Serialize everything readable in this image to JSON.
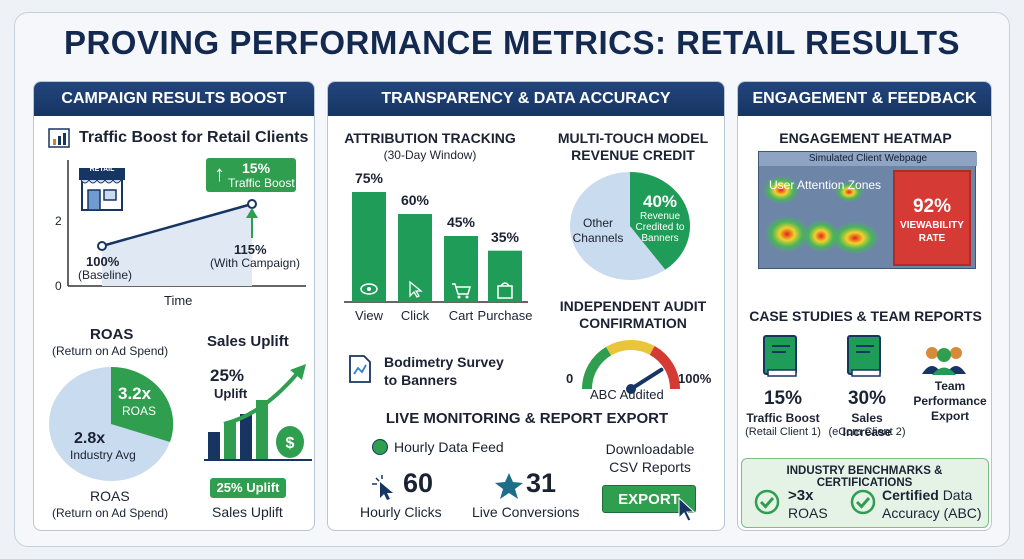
{
  "title": "PROVING PERFORMANCE METRICS: RETAIL RESULTS",
  "left": {
    "header": "CAMPAIGN RESULTS BOOST",
    "traffic_title": "Traffic Boost for Retail Clients",
    "store_sign": "RETAIL",
    "boost_pct": "15%",
    "boost_label": "Traffic Boost",
    "y_tick_top": "2",
    "y_tick_bottom": "0",
    "baseline_value": "100%",
    "baseline_label": "(Baseline)",
    "campaign_value": "115%",
    "campaign_label": "(With Campaign)",
    "x_axis_label": "Time",
    "roas_title": "ROAS",
    "roas_subtitle": "(Return on Ad Spend)",
    "roas_value": "3.2x",
    "roas_value_label": "ROAS",
    "industry_value": "2.8x",
    "industry_label": "Industry Avg",
    "roas_footer": "ROAS",
    "roas_footer_sub": "(Return on Ad Spend)",
    "uplift_title": "Sales Uplift",
    "uplift_pct": "25%",
    "uplift_word": "Uplift",
    "uplift_pill": "25% Uplift",
    "uplift_footer": "Sales Uplift"
  },
  "mid": {
    "header": "TRANSPARENCY & DATA ACCURACY",
    "attr_title": "ATTRIBUTION TRACKING",
    "attr_sub": "(30-Day Window)",
    "bars": [
      {
        "value": "75%",
        "label": "View",
        "pct": 75
      },
      {
        "value": "60%",
        "label": "Click",
        "pct": 60
      },
      {
        "value": "45%",
        "label": "Cart",
        "pct": 45
      },
      {
        "value": "35%",
        "label": "Purchase",
        "pct": 35
      }
    ],
    "mt_title1": "MULTI-TOUCH MODEL",
    "mt_title2": "REVENUE CREDIT",
    "pie_other": "Other",
    "pie_other2": "Channels",
    "pie_pct": "40%",
    "pie_desc1": "Revenue",
    "pie_desc2": "Credited to",
    "pie_desc3": "Banners",
    "pie_share": 40,
    "survey1": "Bodimetry Survey",
    "survey2": "to Banners",
    "audit1": "INDEPENDENT AUDIT",
    "audit2": "CONFIRMATION",
    "gauge_min": "0",
    "gauge_max": "100%",
    "gauge_label": "ABC Audited",
    "live_title": "LIVE MONITORING & REPORT EXPORT",
    "hourly_feed": "Hourly Data Feed",
    "downloadable1": "Downloadable",
    "downloadable2": "CSV Reports",
    "clicks_value": "60",
    "clicks_label": "Hourly Clicks",
    "conv_value": "31",
    "conv_label": "Live Conversions",
    "export": "EXPORT",
    "colors": {
      "green": "#1f9d58",
      "navy": "#163563",
      "pie_light": "#c9dbee"
    }
  },
  "right": {
    "header": "ENGAGEMENT & FEEDBACK",
    "heat_title": "ENGAGEMENT HEATMAP",
    "webpage": "Simulated Client Webpage",
    "zones": "User Attention Zones",
    "view_pct": "92%",
    "view_label1": "VIEWABILITY",
    "view_label2": "RATE",
    "case_title": "CASE STUDIES & TEAM REPORTS",
    "case1_value": "15%",
    "case1_label": "Traffic Boost",
    "case1_sub": "(Retail Client 1)",
    "case2_value": "30%",
    "case2_label": "Sales Increase",
    "case2_sub": "(eCom Client 2)",
    "team1": "Team",
    "team2": "Performance",
    "team3": "Export",
    "bench_title": "INDUSTRY BENCHMARKS & CERTIFICATIONS",
    "bench1_a": ">3x",
    "bench1_b": "ROAS",
    "bench2_a": "Certified",
    "bench2_a2": "Data",
    "bench2_b": "Accuracy (ABC)"
  }
}
